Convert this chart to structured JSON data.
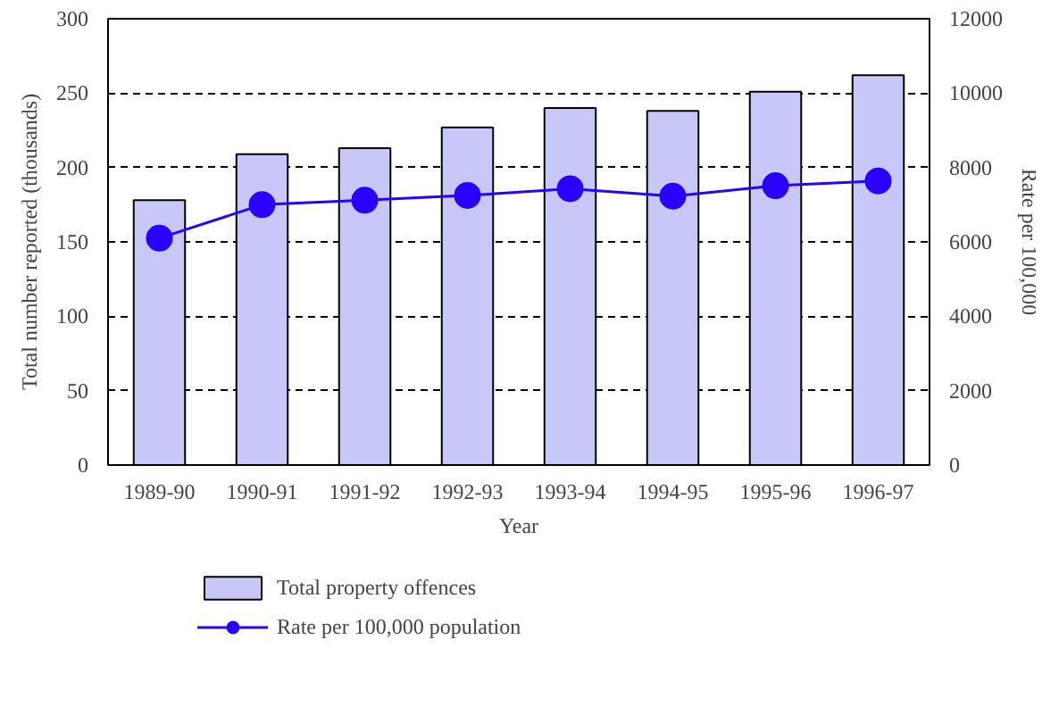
{
  "chart_data": {
    "type": "bar",
    "xlabel": "Year",
    "ylabel": "Total number reported (thousands)",
    "y2label": "Rate per 100,000",
    "categories": [
      "1989-90",
      "1990-91",
      "1991-92",
      "1992-93",
      "1993-94",
      "1994-95",
      "1995-96",
      "1996-97"
    ],
    "series": [
      {
        "name": "Total property offences",
        "color": "#c8c8f8",
        "values": [
          178,
          209,
          213,
          227,
          240,
          238,
          251,
          262
        ]
      },
      {
        "name": "Rate per 100,000 population",
        "type": "line",
        "axis": "y2",
        "color": "#2a00ff",
        "marker": "circle",
        "values": [
          6100,
          7000,
          7120,
          7250,
          7430,
          7230,
          7510,
          7640
        ]
      }
    ],
    "ylim": [
      0,
      300
    ],
    "yticks": [
      0,
      50,
      100,
      150,
      200,
      250,
      300
    ],
    "y2lim": [
      0,
      12000
    ],
    "y2ticks": [
      0,
      2000,
      4000,
      6000,
      8000,
      10000,
      12000
    ],
    "grid": "y",
    "legend": "bottom"
  }
}
